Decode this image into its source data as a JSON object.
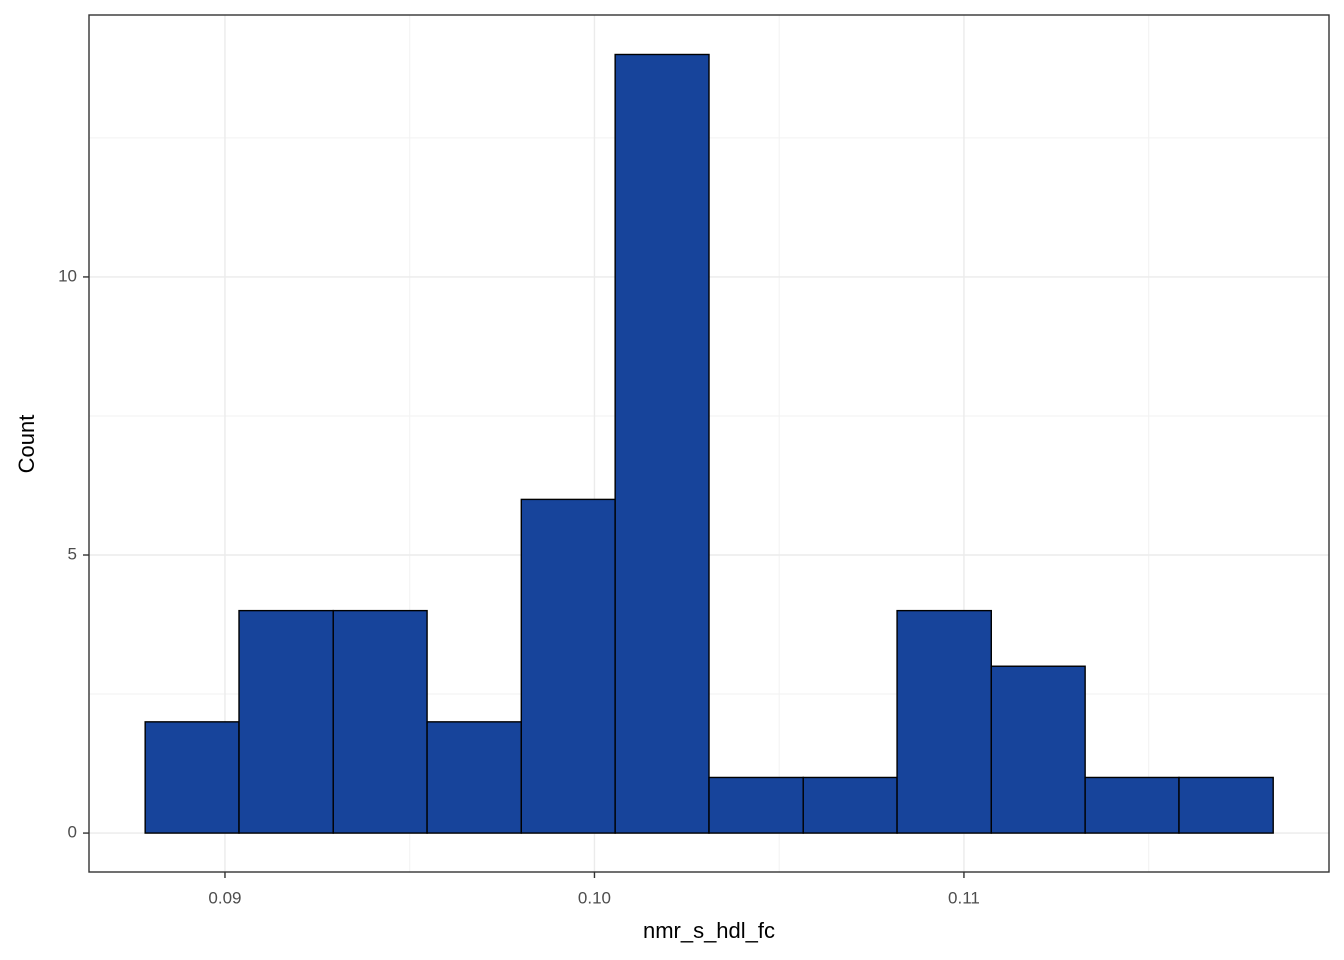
{
  "chart_data": {
    "type": "histogram",
    "x_label": "nmr_s_hdl_fc",
    "y_label": "Count",
    "bins": [
      0.08784,
      0.09038,
      0.09293,
      0.09547,
      0.09802,
      0.10056,
      0.1031,
      0.10565,
      0.10819,
      0.11074,
      0.11328,
      0.11582,
      0.11837
    ],
    "values": [
      2,
      4,
      4,
      2,
      6,
      14,
      1,
      1,
      4,
      3,
      1,
      1
    ],
    "color": "#17449b",
    "edge_color": "#000000",
    "xlim": [
      0.08632,
      0.11988
    ],
    "ylim": [
      -0.7,
      14.71
    ],
    "xticks": [
      0.09,
      {
        "value": 0.1,
        "label": "0.10"
      },
      0.11
    ],
    "yticks": [
      0,
      5,
      10
    ],
    "x_minor_ticks": [
      0.095,
      0.105,
      0.115
    ],
    "y_minor_ticks": [
      2.5,
      7.5,
      12.5
    ],
    "grid": true
  }
}
